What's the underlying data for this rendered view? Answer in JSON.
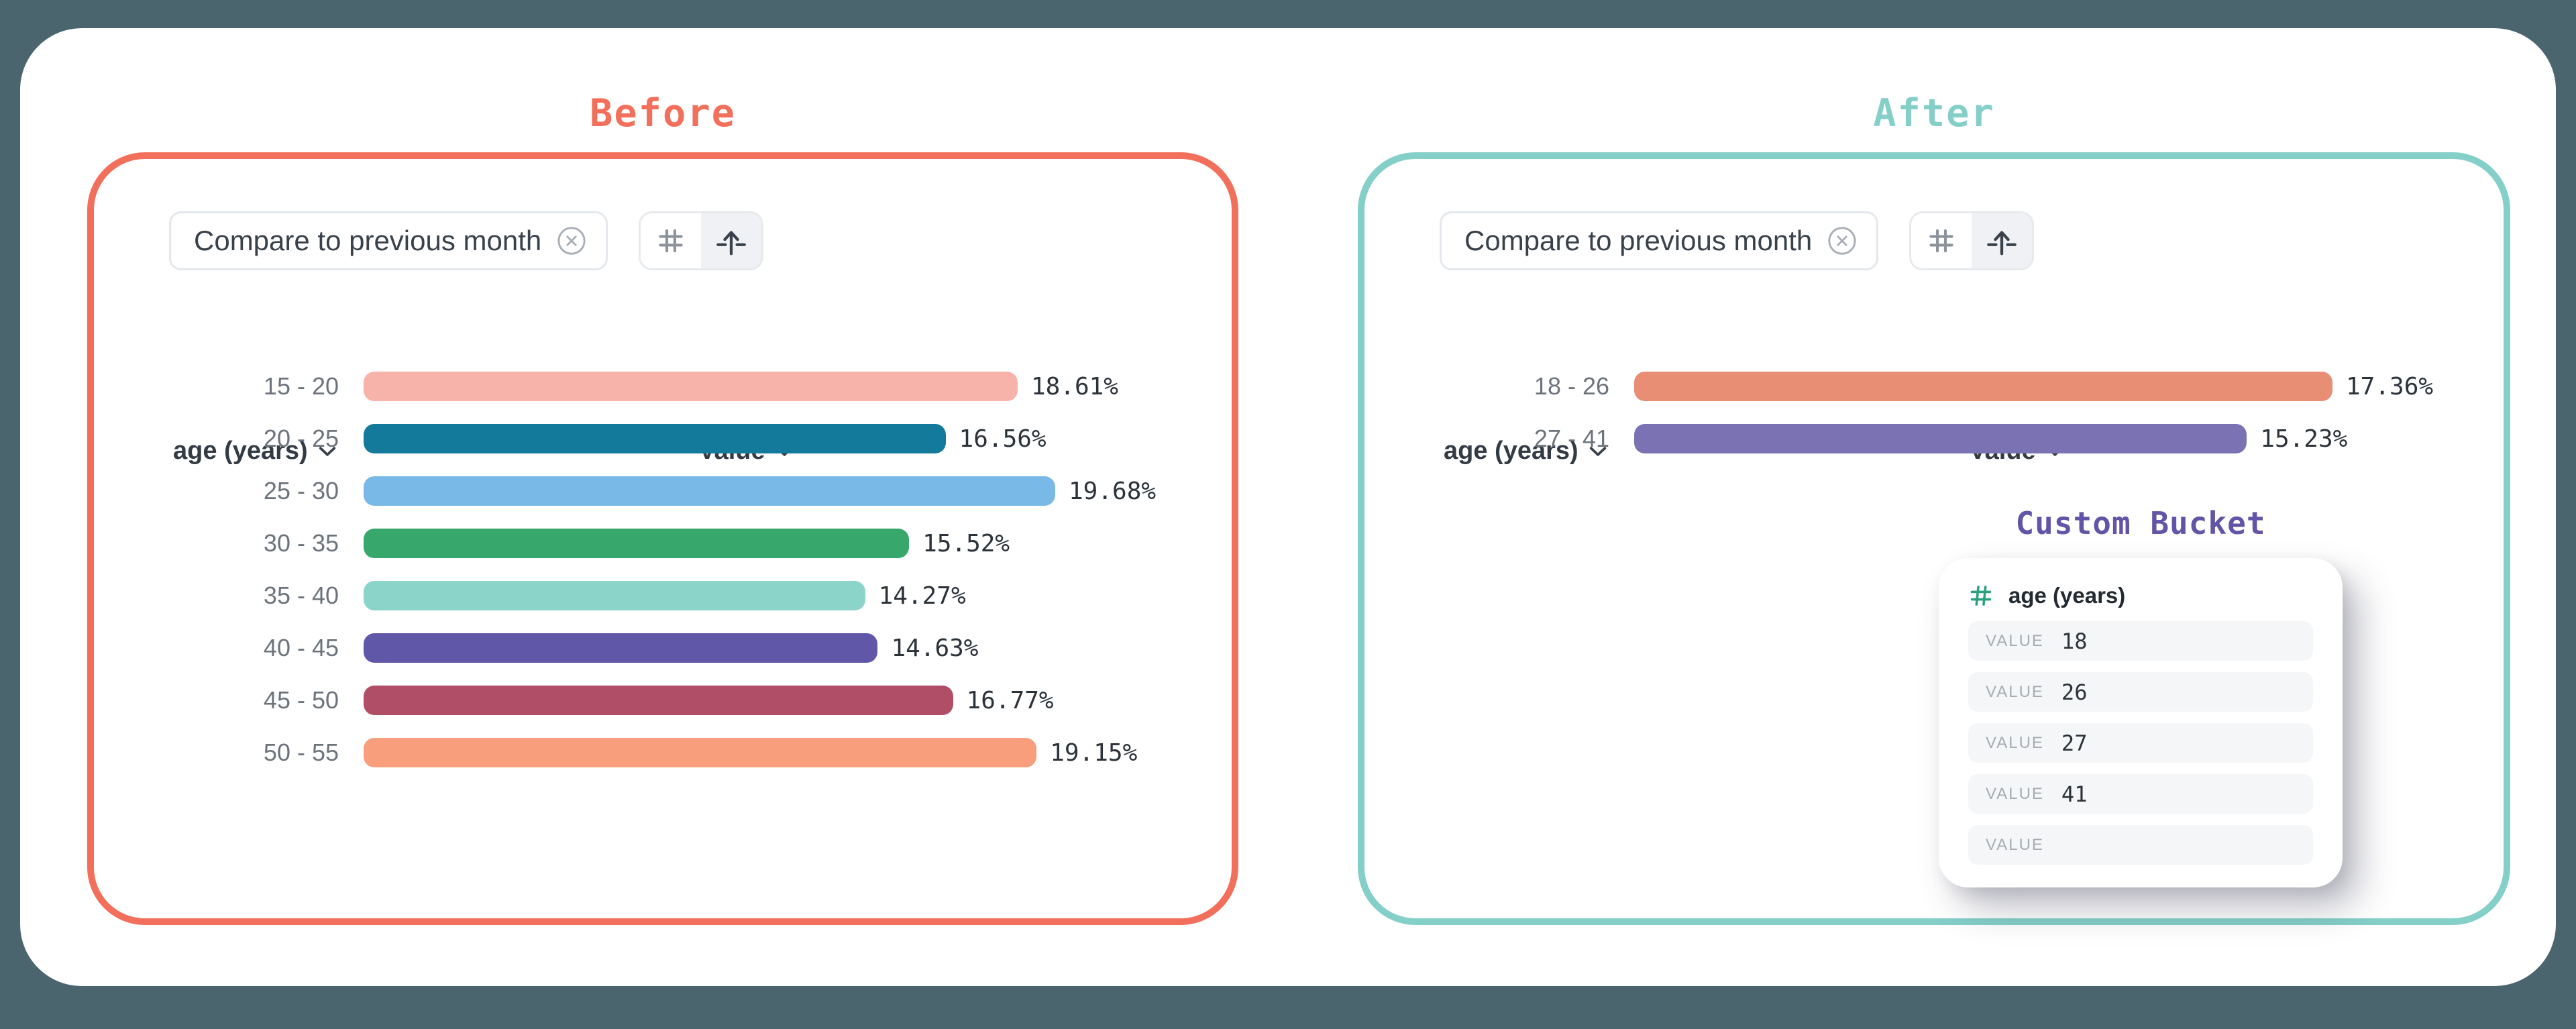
{
  "page": {
    "background": "#4B656F"
  },
  "before": {
    "title": "Before",
    "accent": "#F2705B",
    "chip_label": "Compare to previous month",
    "col_category": "age (years)",
    "col_value": "Value",
    "rows": [
      {
        "label": "15 - 20",
        "pct": 18.61,
        "display": "18.61%",
        "color": "#F7B2A9"
      },
      {
        "label": "20 - 25",
        "pct": 16.56,
        "display": "16.56%",
        "color": "#147A9B"
      },
      {
        "label": "25 - 30",
        "pct": 19.68,
        "display": "19.68%",
        "color": "#78B9E7"
      },
      {
        "label": "30 - 35",
        "pct": 15.52,
        "display": "15.52%",
        "color": "#37A76C"
      },
      {
        "label": "35 - 40",
        "pct": 14.27,
        "display": "14.27%",
        "color": "#8AD4C9"
      },
      {
        "label": "40 - 45",
        "pct": 14.63,
        "display": "14.63%",
        "color": "#6157A8"
      },
      {
        "label": "45 - 50",
        "pct": 16.77,
        "display": "16.77%",
        "color": "#B04E67"
      },
      {
        "label": "50 - 55",
        "pct": 19.15,
        "display": "19.15%",
        "color": "#F89E7C"
      }
    ]
  },
  "after": {
    "title": "After",
    "accent": "#85CFC9",
    "chip_label": "Compare to previous month",
    "col_category": "age (years)",
    "col_value": "Value",
    "rows": [
      {
        "label": "18 - 26",
        "pct": 17.36,
        "display": "17.36%",
        "color": "#E78E75"
      },
      {
        "label": "27 - 41",
        "pct": 15.23,
        "display": "15.23%",
        "color": "#7B72B3"
      }
    ]
  },
  "custom_bucket": {
    "title": "Custom Bucket",
    "accent": "#6254A6",
    "hash_color": "#2BA17B",
    "field_label": "age (years)",
    "value_label": "VALUE",
    "entries": [
      "18",
      "26",
      "27",
      "41",
      ""
    ]
  },
  "icons": {
    "chip_remove": "circle-x-icon",
    "numeric_format": "hash-icon",
    "chart_orientation": "arrow-up-icon",
    "column_dropdown": "chevron-down-icon",
    "bucket_field_type": "hash-icon"
  },
  "chart_data": [
    {
      "type": "bar",
      "orientation": "horizontal",
      "title": "Before",
      "xlabel": "Value",
      "ylabel": "age (years)",
      "unit": "percent",
      "categories": [
        "15 - 20",
        "20 - 25",
        "25 - 30",
        "30 - 35",
        "35 - 40",
        "40 - 45",
        "45 - 50",
        "50 - 55"
      ],
      "values": [
        18.61,
        16.56,
        19.68,
        15.52,
        14.27,
        14.63,
        16.77,
        19.15
      ],
      "colors": [
        "#F7B2A9",
        "#147A9B",
        "#78B9E7",
        "#37A76C",
        "#8AD4C9",
        "#6157A8",
        "#B04E67",
        "#F89E7C"
      ],
      "xlim": [
        0,
        20
      ],
      "grid": false,
      "value_labels": true
    },
    {
      "type": "bar",
      "orientation": "horizontal",
      "title": "After",
      "xlabel": "Value",
      "ylabel": "age (years)",
      "unit": "percent",
      "categories": [
        "18 - 26",
        "27 - 41"
      ],
      "values": [
        17.36,
        15.23
      ],
      "colors": [
        "#E78E75",
        "#7B72B3"
      ],
      "xlim": [
        0,
        20
      ],
      "grid": false,
      "value_labels": true
    }
  ]
}
